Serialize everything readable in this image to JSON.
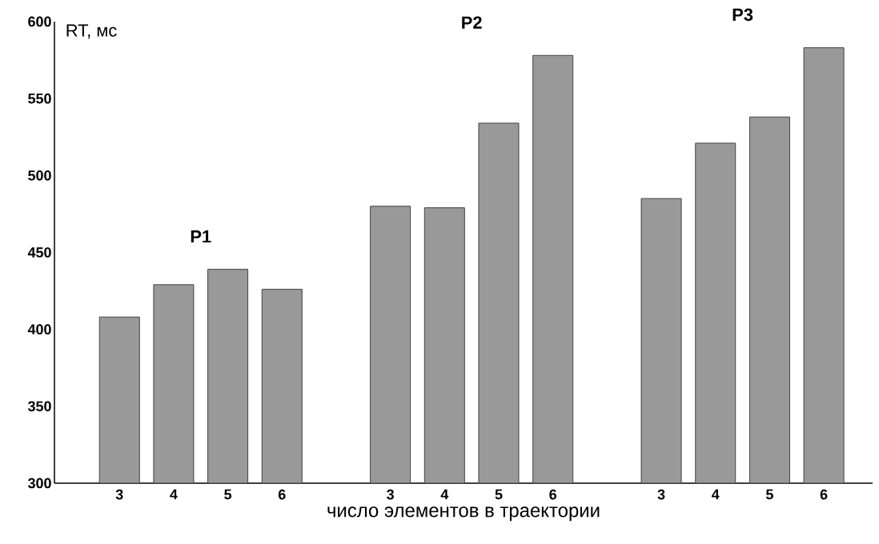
{
  "chart_data": {
    "type": "bar",
    "ylabel": "RT, мс",
    "xlabel": "число элементов в траектории",
    "categories": [
      "3",
      "4",
      "5",
      "6",
      null,
      "3",
      "4",
      "5",
      "6",
      null,
      "3",
      "4",
      "5",
      "6"
    ],
    "values": [
      408,
      429,
      439,
      426,
      null,
      480,
      479,
      534,
      578,
      null,
      485,
      521,
      538,
      583
    ],
    "color": "#999999",
    "ylim": [
      300,
      600
    ],
    "yticks": [
      300,
      350,
      400,
      450,
      500,
      550,
      600
    ],
    "annotations": [
      "P1",
      "P2",
      "P3"
    ]
  }
}
